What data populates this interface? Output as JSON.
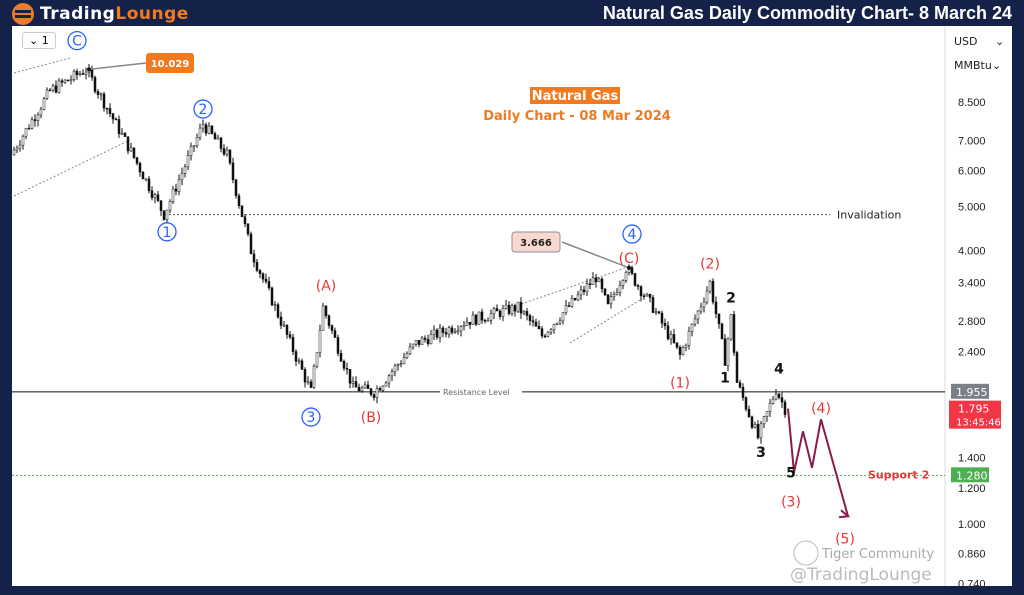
{
  "header": {
    "logo_left": "TradingLounge",
    "logo_word1": "Trading",
    "logo_word2": "Lounge",
    "title": "Natural Gas Daily Commodity Chart- 8 March 24"
  },
  "toolbar": {
    "interval_label": "1",
    "currency": "USD",
    "unit": "MMBtu"
  },
  "watermark": {
    "community": "Tiger Community",
    "handle": "@TradingLounge"
  },
  "chart_data": {
    "type": "candlestick",
    "title": "Natural Gas",
    "subtitle": "Daily Chart - 08 Mar 2024",
    "scale": "log",
    "ylim": [
      0.74,
      10.5
    ],
    "yticks": [
      "8.500",
      "7.000",
      "6.000",
      "5.000",
      "4.000",
      "3.400",
      "2.800",
      "2.400",
      "1.400",
      "1.200",
      "1.000",
      "0.860",
      "0.740"
    ],
    "price_path": [
      [
        0,
        6.5
      ],
      [
        13,
        9.0
      ],
      [
        25,
        10.029
      ],
      [
        39,
        6.8
      ],
      [
        51,
        4.8
      ],
      [
        64,
        7.6
      ],
      [
        72,
        6.5
      ],
      [
        80,
        4.0
      ],
      [
        92,
        2.6
      ],
      [
        100,
        1.955
      ],
      [
        104,
        3.0
      ],
      [
        114,
        2.0
      ],
      [
        121,
        1.95
      ],
      [
        135,
        2.5
      ],
      [
        152,
        2.8
      ],
      [
        169,
        3.0
      ],
      [
        177,
        2.6
      ],
      [
        195,
        3.5
      ],
      [
        199,
        3.0
      ],
      [
        205,
        3.666
      ],
      [
        214,
        3.0
      ],
      [
        223,
        2.35
      ],
      [
        233,
        3.4
      ],
      [
        238,
        2.3
      ],
      [
        240,
        2.85
      ],
      [
        242,
        2.05
      ],
      [
        249,
        1.55
      ],
      [
        255,
        1.98
      ],
      [
        258,
        1.795
      ]
    ],
    "projection": [
      [
        258,
        1.795
      ],
      [
        260,
        1.3
      ],
      [
        263,
        1.6
      ],
      [
        266,
        1.33
      ],
      [
        269,
        1.7
      ],
      [
        278,
        1.04
      ]
    ],
    "levels": [
      {
        "name": "Invalidation",
        "price": 4.8,
        "color": "#555555"
      },
      {
        "name": "Resistance Level",
        "price": 1.955,
        "color": "#555555",
        "tag": "1.955"
      },
      {
        "name": "Support 2",
        "price": 1.28,
        "color": "#4caf50",
        "tag": "1.280"
      }
    ],
    "last_price": {
      "value": "1.795",
      "countdown": "13:45:46",
      "color": "#f23645"
    },
    "callouts": [
      {
        "text": "10.029",
        "bar": 25,
        "price": 10.029,
        "color": "#f07a1f"
      },
      {
        "text": "3.666",
        "bar": 205,
        "price": 3.666,
        "color": "#f9d9cf"
      }
    ],
    "wave_labels": [
      {
        "text": "C",
        "style": "blue",
        "bar": 21,
        "price": 11.6
      },
      {
        "text": "1",
        "style": "blue",
        "bar": 51,
        "price": 4.4
      },
      {
        "text": "2",
        "style": "blue",
        "bar": 63,
        "price": 8.2
      },
      {
        "text": "3",
        "style": "blue",
        "bar": 99,
        "price": 1.72
      },
      {
        "text": "4",
        "style": "blue",
        "bar": 206,
        "price": 4.35
      },
      {
        "text": "(A)",
        "style": "red",
        "bar": 104,
        "price": 3.35
      },
      {
        "text": "(B)",
        "style": "red",
        "bar": 119,
        "price": 1.72
      },
      {
        "text": "(C)",
        "style": "red",
        "bar": 205,
        "price": 3.85
      },
      {
        "text": "(1)",
        "style": "red",
        "bar": 222,
        "price": 2.05
      },
      {
        "text": "(2)",
        "style": "red",
        "bar": 232,
        "price": 3.75
      },
      {
        "text": "(3)",
        "style": "red",
        "bar": 259,
        "price": 1.12
      },
      {
        "text": "(4)",
        "style": "red",
        "bar": 269,
        "price": 1.8
      },
      {
        "text": "(5)",
        "style": "red",
        "bar": 277,
        "price": 0.93
      },
      {
        "text": "1",
        "style": "black",
        "bar": 237,
        "price": 2.1
      },
      {
        "text": "2",
        "style": "black",
        "bar": 239,
        "price": 3.15
      },
      {
        "text": "3",
        "style": "black",
        "bar": 249,
        "price": 1.44
      },
      {
        "text": "4",
        "style": "black",
        "bar": 255,
        "price": 2.2
      },
      {
        "text": "5",
        "style": "black",
        "bar": 259,
        "price": 1.3
      }
    ]
  }
}
